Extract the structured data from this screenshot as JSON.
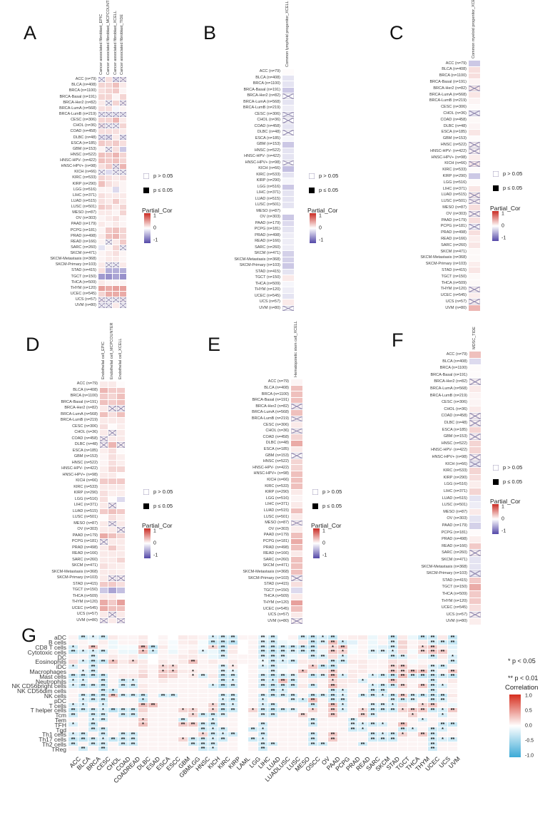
{
  "figure": {
    "panel_letters": {
      "A": "A",
      "B": "B",
      "C": "C",
      "D": "D",
      "E": "E",
      "F": "F",
      "G": "G"
    }
  },
  "af_legend": {
    "p_gt": "p > 0.05",
    "p_le": "p ≤ 0.05",
    "colorbar_title": "Partial_Cor",
    "colorbar_ticks": [
      "1",
      "0",
      "-1"
    ]
  },
  "colors": {
    "positive_red": "#ca2c24",
    "negative_purple": "#5448a8",
    "negative_blue_G": "#3caad7",
    "star": "#111111",
    "cross_mark": "#968eb2"
  },
  "cancer_rows": [
    "ACC (n=79)",
    "BLCA (n=408)",
    "BRCA (n=1100)",
    "BRCA-Basal (n=191)",
    "BRCA-Her2 (n=82)",
    "BRCA-LumA (n=568)",
    "BRCA-LumB (n=219)",
    "CESC (n=306)",
    "CHOL (n=36)",
    "COAD (n=458)",
    "DLBC (n=48)",
    "ESCA (n=185)",
    "GBM (n=153)",
    "HNSC (n=522)",
    "HNSC-HPV- (n=422)",
    "HNSC-HPV+ (n=98)",
    "KICH (n=66)",
    "KIRC (n=533)",
    "KIRP (n=290)",
    "LGG (n=516)",
    "LIHC (n=371)",
    "LUAD (n=515)",
    "LUSC (n=501)",
    "MESO (n=87)",
    "OV (n=303)",
    "PAAD (n=179)",
    "PCPG (n=181)",
    "PRAD (n=498)",
    "READ (n=166)",
    "SARC (n=260)",
    "SKCM (n=471)",
    "SKCM-Metastasis (n=368)",
    "SKCM-Primary (n=103)",
    "STAD (n=415)",
    "TGCT (n=150)",
    "THCA (n=509)",
    "THYM (n=120)",
    "UCEC (n=545)",
    "UCS (n=57)",
    "UVM (n=80)"
  ],
  "chart_data": [
    {
      "panel": "A",
      "type": "heatmap",
      "cell_token_format": "partial correlation; trailing x = p>0.05 (crossed)",
      "value_range": [
        -1,
        1
      ],
      "columns": [
        "Cancer associated fibroblast_EPIC",
        "Cancer associated fibroblast_MCPCOUNTER",
        "Cancer associated fibroblast_XCELL",
        "Cancer associated fibroblast_TIDE"
      ],
      "cells": [
        "0x 0.15 -0.1x 0.05x",
        "0.2 0.2 0.3 0.1",
        "0.15 0.2 0.25 0.05",
        "0.2 0.2 0.05 0.2",
        "0.1 0x 0.2 0.05x",
        "0.15 0.15 -0.05 0.05",
        "-0.05x -0.05x -0.05x -0.05x",
        "0.2 0.2 0.35 0.1",
        "0.1x 0x 0x 0.2",
        "0.15 0.15 0.15 0.1",
        "-0.1x -0.15x 0.1 -0.1x",
        "0.25 0.2 0.25 0.15",
        "0.05 0x 0.15 -0.3",
        "0.3 0.25 0.35 0.2",
        "0.3 0.25 0.3 0.2",
        "0.15 0.25 0.05x 0.35",
        "0x -0.2 0x 0x",
        "0.2 0.15 0.1 0.15",
        "0.3 0.15 0.1 0.05",
        "0.05 0.05 -0.2 0.05",
        "0.15 0.1 0.1 0.1",
        "0.15 0.1 0.25 0.1",
        "0.25 0.2 0.1 0.2",
        "0.1 0.1 0.05 0.2",
        "0.05 0.1 0.15 0.05",
        "0.1 0.05 0.1 0.05",
        "0.05 0.25 0.3 0.2",
        "0.1 0.3 0.35 0.2",
        "0.05 0x 0.1 0.25",
        "-0.15 0.05 0.2 0x",
        "0.05 0.1 0.15 0.05",
        "0.05 0.1 0.1 0.05",
        "0.1 0x 0x 0.1",
        "0.15 -0.45 -0.45 -0.45",
        "-0.55 -0.6 -0.5 -0.6",
        "0.1 0.05 0.05 0.05",
        "0.45 0.4 0.45 0.45",
        "0.2 0.4 0.4 0.4",
        "0.05x 0x 0x 0.05x",
        "0x 0x 0.1 0x"
      ]
    },
    {
      "panel": "B",
      "type": "heatmap",
      "cell_token_format": "partial correlation; trailing x = p>0.05 (crossed)",
      "value_range": [
        -1,
        1
      ],
      "columns": [
        "Common lymphoid progenitor_XCELL"
      ],
      "cells": [
        "0.02",
        "-0.15",
        "-0.15",
        "-0.3",
        "0x",
        "-0.15",
        "-0.1",
        "-0.05x",
        "0x",
        "-0.15",
        "0x",
        "-0.05",
        "-0.3",
        "-0.15",
        "-0.15",
        "0x",
        "-0.35",
        "-0.15",
        "-0.05",
        "-0.3",
        "-0.15",
        "-0.15",
        "-0.15",
        "0",
        "-0.3",
        "-0.2",
        "-0.15",
        "-0.1",
        "-0.1",
        "-0.1",
        "-0.25",
        "-0.25",
        "-0.3",
        "-0.15",
        "0.1",
        "-0.05",
        "-0.1",
        "-0.15",
        "0.1",
        "0x"
      ]
    },
    {
      "panel": "C",
      "type": "heatmap",
      "cell_token_format": "partial correlation; trailing x = p>0.05 (crossed)",
      "value_range": [
        -1,
        1
      ],
      "columns": [
        "Common myeloid progenitor_XCELL"
      ],
      "cells": [
        "-0.3",
        "0.15",
        "0.15",
        "0.05",
        "0.1x",
        "0.12",
        "0.05",
        "0.02",
        "-0.1x",
        "0.03",
        "0.05",
        "0.12",
        "0.02",
        "0.05x",
        "0.05x",
        "0.08",
        "0.1x",
        "0.02",
        "-0.3",
        "0.02",
        "0.12",
        "0.08x",
        "0.05x",
        "0.15",
        "0.05x",
        "0.15",
        "-0.05x",
        "0.15",
        "0.08",
        "0.12",
        "0.03",
        "0.03",
        "0.08",
        "0.12",
        "0.03",
        "0.03",
        "0.05x",
        "0.08",
        "0.05x",
        "0.35"
      ]
    },
    {
      "panel": "D",
      "type": "heatmap",
      "cell_token_format": "partial correlation; trailing x = p>0.05 (crossed)",
      "value_range": [
        -1,
        1
      ],
      "columns": [
        "Endothelial cell_EPIC",
        "Endothelial cell_MCPCOUNTER",
        "Endothelial cell_XCELL"
      ],
      "cells": [
        "0.1 0.1 0.02",
        "0.35 0.25 0.25",
        "0.25 0.2 0.3",
        "0.3 0.25 0.3",
        "0.1 0.05x 0.05x",
        "0.3 0.15 0.3",
        "0.1 0.1 0.1",
        "0.15 0.02 0.08",
        "0.1 0.05x 0.1",
        "0.05x 0.1 0.1",
        "0.05x 0.35 0.05x",
        "0.08 0.15 0.02",
        "0.05 0.15 0.08",
        "0.05 0.15 0.08",
        "0.08 0.2 0.2",
        "0.1 0.1 0.02",
        "0.25 0.25 0.25",
        "0.1 0.1 0.1",
        "0.15 0.08 0.08",
        "0.15 0.02 -0.2",
        "0.1 0.05x 0.02",
        "0.25 0.3 0.25",
        "0.02 0.15 0.08",
        "0.1 0.05x 0.1",
        "0.1 0.1 0.05x",
        "0.4 0.3 0.2",
        "0.05x 0.1 0.1",
        "0.1 0.25 0.1",
        "0.1 0.1 0.1",
        "0.1 0.1 0.2",
        "0.15 0.1 0.08",
        "0.1 0.1 0.08",
        "0.1 0.05x 0.05x",
        "0.25 0.25 0.15",
        "-0.3 -0.5 -0.35",
        "0.1 0.1 0.02",
        "0.4 0.25 0.45",
        "0.4 0.3 0.3",
        "0.1 0.05x 0.1",
        "0.05x 0.1 0.05x"
      ]
    },
    {
      "panel": "E",
      "type": "heatmap",
      "cell_token_format": "partial correlation; trailing x = p>0.05 (crossed)",
      "value_range": [
        -1,
        1
      ],
      "columns": [
        "Hematopoietic stem cell_XCELL"
      ],
      "cells": [
        "0.05",
        "0.3",
        "0.3",
        "0.3",
        "0.05x",
        "0.3",
        "0.05x",
        "0.1",
        "0.05x",
        "0.2",
        "0.4",
        "0.1",
        "0.02x",
        "0.2",
        "0.2",
        "0.3",
        "0.3",
        "0.3",
        "0.1",
        "0.05",
        "0.1",
        "0.3",
        "0.1",
        "0.05x",
        "0.08",
        "0.3",
        "0.4",
        "0.3",
        "0.1",
        "0.3",
        "0.3",
        "0.3",
        "0.05x",
        "0.15",
        "-0.2",
        "0.1",
        "0.45",
        "0.3",
        "0.1",
        "0.05x"
      ]
    },
    {
      "panel": "F",
      "type": "heatmap",
      "cell_token_format": "partial correlation; trailing x = p>0.05 (crossed)",
      "value_range": [
        -1,
        1
      ],
      "columns": [
        "MDSC_TIDE"
      ],
      "cells": [
        "0.3",
        "-0.2",
        "0.02",
        "0.02",
        "0.05x",
        "0.1",
        "0.05",
        "0.05",
        "0.1",
        "0.05x",
        "0.05x",
        "0.2",
        "0.05x",
        "0.2",
        "0.2",
        "0.05x",
        "-0.1x",
        "0.2",
        "0.15",
        "0.08",
        "0.2",
        "-0.15",
        "-0.1",
        "0.1",
        "-0.15",
        "-0.25",
        "0.02",
        "0.08",
        "0.25",
        "0.05x",
        "-0.15",
        "-0.15",
        "-0.1x",
        "0.25",
        "0.4",
        "0.25",
        "0.25",
        "0.15",
        "0.05x",
        "0.08"
      ]
    },
    {
      "panel": "G",
      "type": "heatmap",
      "cell_token_format": "correlation; trailing * p<0.05, ** p<0.01",
      "value_range": [
        -1,
        1
      ],
      "legend": {
        "sig": [
          "* p < 0.05",
          "** p < 0.01"
        ],
        "colorbar_title": "Correlation",
        "colorbar_ticks": [
          "1.0",
          "0.5",
          "0.0",
          "-0.5",
          "-1.0"
        ]
      },
      "rows": [
        "aDC",
        "B cells",
        "CD8 T cells",
        "Cytotoxic cells",
        "DC",
        "Eosinophils",
        "iDC",
        "Macrophages",
        "Mast cells",
        "Neutrophils",
        "NK CD56bright cells",
        "NK CD56dim cells",
        "NK cells",
        "pDC",
        "T cells",
        "T helper cells",
        "Tcm",
        "Tem",
        "TFH",
        "Tgd",
        "Th1 cells",
        "Th17 cells",
        "Th2 cells",
        "TReg"
      ],
      "columns": [
        "ACC",
        "BLCA",
        "BRCA",
        "CESC",
        "CHOL",
        "COAD",
        "COADREAD",
        "DLBC",
        "ESAD",
        "ESCA",
        "ESCC",
        "GBM",
        "GBMLGG",
        "HNSC",
        "KICH",
        "KIRC",
        "KIRP",
        "LAML",
        "LGG",
        "LIHC",
        "LUAD",
        "LUADLUSC",
        "LUSC",
        "MESO",
        "OSCC",
        "OV",
        "PAAD",
        "PCPG",
        "PRAD",
        "READ",
        "SARC",
        "SKCM",
        "STAD",
        "TGCT",
        "THCA",
        "THYM",
        "UCEC",
        "UCS",
        "UVM"
      ],
      "cells": [
        "0.05 -0.25** -0.15* -0.25** 0.1 0.05 0.05 0.1 0 0.05 0 0.1 0.08 0.05 -0.2* -0.25** -0.25** 0.05 0.05 -0.15** -0.25** 0 0.05 -0.25** -0.3** -0.2* -0.3** 0.05 0.08 0.1 -0.1 0.05 -0.3** 0.1 -0.1 -0.3** -0.25** 0.1 -0.3**",
        "0.05 0.05 -0.05 0.08 -0.1 0.05 0.05 0.1 0 0.05 -0.05 0.08 0.1 -0.05 -0.3** -0.3** -0.35** 0 0.05 -0.2** -0.25** -0.1 -0.05 0.1 -0.3** -0.2** 0.3** -0.25* -0.15 0.05 -0.1 0.05 -0.2** 0.2 0.05 0.1 -0.2** -0.25** -0.3**",
        "-0.25* 0.05 0.3** 0.05 -0.1 -0.05 -0.05 0.35** -0.35** 0.1 -0.05 0.05 0.05 -0.05 0.2* -0.3** 0.1 0 0.05 -0.25** -0.3** -0.3** -0.3** -0.3** -0.3** 0.1 0.2* 0.3** -0.05 0.05 -0.1 -0.15 -0.25** 0.2 0.05 0.2* 0.25** 0.1 -0.15",
        "-0.3** -0.2* -0.2* -0.25** 0.05 -0.1 -0.1 0.3* -0.25* 0.05 -0.1 0.05 0.1 -0.15* -0.1 -0.25** 0.1 0 0.05 -0.25** -0.3** -0.25** -0.2** -0.25** -0.25** -0.1 0.25** 0.2* -0.05 0.05 -0.2** -0.2** -0.2* 0.15 -0.05 0.2** 0.25** 0.25** -0.1",
        "0.05 0.05 -0.2** 0.05 0.1 0.05 0.08 -0.1 0 0.05 0.05 0.1 0.1 0.05 -0.1 -0.2** 0.05 0.05 0.05 -0.2** -0.25** -0.2** -0.1 0.05 -0.25** -0.2** 0.15 -0.2* 0.05 0.05 -0.1 -0.05 -0.25** -0.2** 0.05 -0.1 -0.25** 0.1 -0.2*",
        "0.15 -0.2* -0.3** -0.3** 0.3* 0.1 0.2* 0.1 0 0.1 0.05 0.1 0.3** 0.05 0.1 0.05 0.1 0.05 0.05 -0.1* -0.25** -0.2* -0.25** 0.1 0.1 0.1 -0.25** -0.25** 0.1 0.1 0.05 0.05 0.15 0.1 -0.05 0.05 0.05 0.05 -0.25**",
        "-0.2* 0.05 -0.25** 0.05 0.1 0.05 0.05 0.1 0.05 0.2* 0.2* 0.05 0.05 0.05 0.05 -0.2** 0.1* 0 0.05 -0.2* -0.25** -0.1 -0.05 0.05 0.25* -0.3** -0.3** 0.05 0.05 0.1 0.05 0.05 0.2** 0.25** 0.05 0.1 -0.2** -0.25** 0.05",
        "0.05 -0.15* -0.25** 0.05 0.05 0.05 0.05 0.15 0.05 0.25* 0.25* 0.1 0.1* 0.05 0.05 -0.2** -0.15* 0 0.05 -0.1 -0.2** -0.05 0.05 0.3* 0.1 0.1 0.25** 0.05 0.1 0.1 0.05 0.05 0.25** 0.2** 0.3** 0.3** -0.2** 0.05 0.25**",
        "-0.3** -0.3** -0.3** -0.3** 0.05 0.1 0.1 0.2 0.05 0.25 0.2 0.05 0.1* -0.2** 0.1 -0.3** -0.25** 0 0.05 -0.25** -0.3** -0.25** -0.2** 0.1 -0.3** -0.2** 0.3** -0.2* 0.1 0.05 -0.2* -0.25** -0.3** 0.3** -0.25** -0.3** -0.3** -0.25** -0.3**",
        "-0.2* -0.2* 0.05 -0.25** 0.05 -0.25** -0.2* 0.05 0.05 0.1 0.05 0.05 0.05 0.05 0.05 -0.25** -0.2* 0 0.05 -0.2** -0.25* 0.3** -0.25** 0.05 0.1 0.05 0.2* 0.1 0.1 -0.2* 0.05 0.05 0.25** 0.1 0.05 0.05 -0.25** 0.05 0.1",
        "-0.2* -0.3** -0.25** -0.3** 0.05 -0.25** -0.25** 0.1 0.05 0.05 0.05 0.05 0.05 0.05 -0.2* -0.35** -0.25** 0 0.05 -0.25** -0.3** -0.25** -0.25** 0.1 -0.25** 0.05 0.3** 0.1 0.05 0.05 -0.2* -0.25** -0.25** 0.2** 0.05 0.25** -0.25** -0.2* 0.05",
        "0.05 0.05 0.05 -0.25** -0.3* 0.05 0.05 0.1 0.05 0.05 0.05 0.05 0.05 0.05 0.05 0.05 0.05 0 0.05 0.05 -0.25** -0.2* 0.05 0.05 0.05 0.05 -0.25** -0.2* 0.05 0.05 -0.25** -0.25** 0.05 0.05 0.05 0.05 -0.25** 0.05 0.05",
        "0.05 -0.25** -0.3** -0.3** 0.3** -0.25** -0.25** -0.3** 0.05 -0.25** -0.25** 0.05 0.05 0.05 0.05 -0.25** -0.25** 0 0.05 -0.25** -0.3** -0.25** -0.25** 0.05 -0.3** -0.25** -0.3** -0.2* 0.05 -0.25** -0.25** -0.2* -0.3** 0.25** -0.25** -0.3** -0.3** -0.3** 0.1",
        "0.05 -0.2* -0.25** -0.25** 0.05 0.05 0.05 -0.3* 0.05 0.05 0.05 0.05 0.05 0.05 0.05 -0.2* -0.25** 0 0.05 -0.2* 0.05 0.05 -0.2** -0.25* 0.3** 0.05 -0.25** -0.25** 0.05 0.05 0.05 0.05 -0.2** -0.25** -0.2** 0.05 -0.25** -0.2** 0.05",
        "-0.2* -0.2* 0.05 -0.2* 0.05 0.05 0.05 0.3** 0.3** 0.05 0.05 0.05 0.05 0.05 0.2* -0.25** -0.2* 0 0.05 -0.2* -0.25** 0.05 0.05 0.05 -0.25** 0.05 0.3** -0.2* 0.05 0.05 -0.2** -0.2** -0.2* 0.15 0.05 0.2* 0.25** 0.05 -0.1",
        "-0.3** -0.25** -0.25** -0.2* -0.35** -0.25** -0.25** 0.2 0.05 0.05 0.05 0.2* 0.2* 0.05 0.2* -0.3** -0.25** 0 0.2* -0.25** -0.3** -0.25** -0.2** 0.05 0.2* 0.05 0.25** -0.2* 0.05 0.2* -0.25** -0.25** -0.25** 0.2* 0.25** 0.25** -0.25** -0.2* 0.25**",
        "-0.25** 0.05 -0.25** -0.25** 0.05 -0.25** -0.25** 0.1 0.05 0.05 0.05 0.05 0.2* -0.25** -0.25** -0.2** 0.05 0 0.05 -0.2** -0.25** 0.05 0.05 0.2** 0.05 0.05 0.25** 0.05 0.05 0.2** -0.2** 0.05 0.05 0.05 0.2* 0.05 0.05 -0.2* 0.05",
        "0.05 0.05 -0.2* -0.25** 0.05 0.05 0.05 0.25* 0.05 0.05 0.05 -0.25** 0.05 0.05 -0.2* 0.05 0.05 0 0.05 0.05 0.05 0.05 0.05 0.05 -0.25** 0.05 0.05 0.05 -0.25** 0.05 0.05 0.05 0.05 0.05 0.05 -0.2* 0.05 0.05 0.05",
        "-0.2* 0.05 -0.3** 0.05 0.05 0.05 0.05 0.3* 0.05 0.05 0.05 0.25** 0.25** -0.25** -0.3** 0.05 0.05 0 0.05 -0.25** 0.05 0.05 0.05 0.05 -0.25** 0.05 0.05 0.05 -0.2** -0.2* -0.25** -0.2* 0.05 0.3** 0.05 0.05 0.05 -0.25** -0.3**",
        "0.05 0.05 -0.25** -0.25** 0.05 0.05 0.05 0.05 0.05 0.05 0.05 0.05 0.05 -0.25** -0.2* -0.25** 0.05 0 -0.25** -0.2* 0.05 0.05 0.05 0.05 0.05 0.05 0.05 0.05 -0.25** -0.2* 0.05 0.05 0.05 -0.25** -0.2* 0.05 -0.25** -0.2* 0.05",
        "-0.2* -0.25** 0.05 -0.25** 0.05 -0.25** -0.25** 0.05 0.05 0.05 0.05 0.05 0.05 0.2* -0.25** -0.2* -0.25** 0 0.05 -0.25** 0.05 0.05 0.05 0.05 -0.25** 0.05 0.25** 0.05 0.05 0.05 -0.25** -0.2* -0.25** 0.2* 0.05 0.25** -0.25** 0.05 0.05",
        "-0.3** -0.3** -0.25** -0.2* -0.3** -0.25** -0.25** 0.05 0.05 0.05 0.05 0.2* -0.25** -0.25** -0.2* -0.25** 0.05 0 -0.25** -0.2* 0.05 0.05 0.05 0.05 -0.25** 0.05 0.25** 0.05 0.05 0.05 -0.25** -0.25** -0.25** 0.05 0.05 0.05 -0.25** -0.2* -0.25**",
        "-0.25** 0.05 -0.25** -0.25** 0.05 -0.25** -0.25** 0.05 0.05 0.05 0.05 0.05 -0.25** -0.25** -0.25** 0.05 0.05 0 0.05 -0.25** -0.25** 0.05 0.05 0.05 -0.25** -0.25** 0.05 0.05 0.05 -0.25** 0.05 0.05 0.05 0.05 0.05 0.05 -0.25** 0.05 0.05",
        "0.05 -0.25** 0.05 -0.25** 0.05 0.05 0.05 0.05 0.05 0.05 0.05 0.05 0.05 -0.25** -0.2* 0.05 0.05 0 0.05 -0.25** 0.05 0.05 0.05 0.05 0.05 0.05 0.05 0.05 0.05 0.05 0.05 0.05 0.05 0.05 0.05 0.05 -0.25** 0.05 0.05"
      ]
    }
  ]
}
